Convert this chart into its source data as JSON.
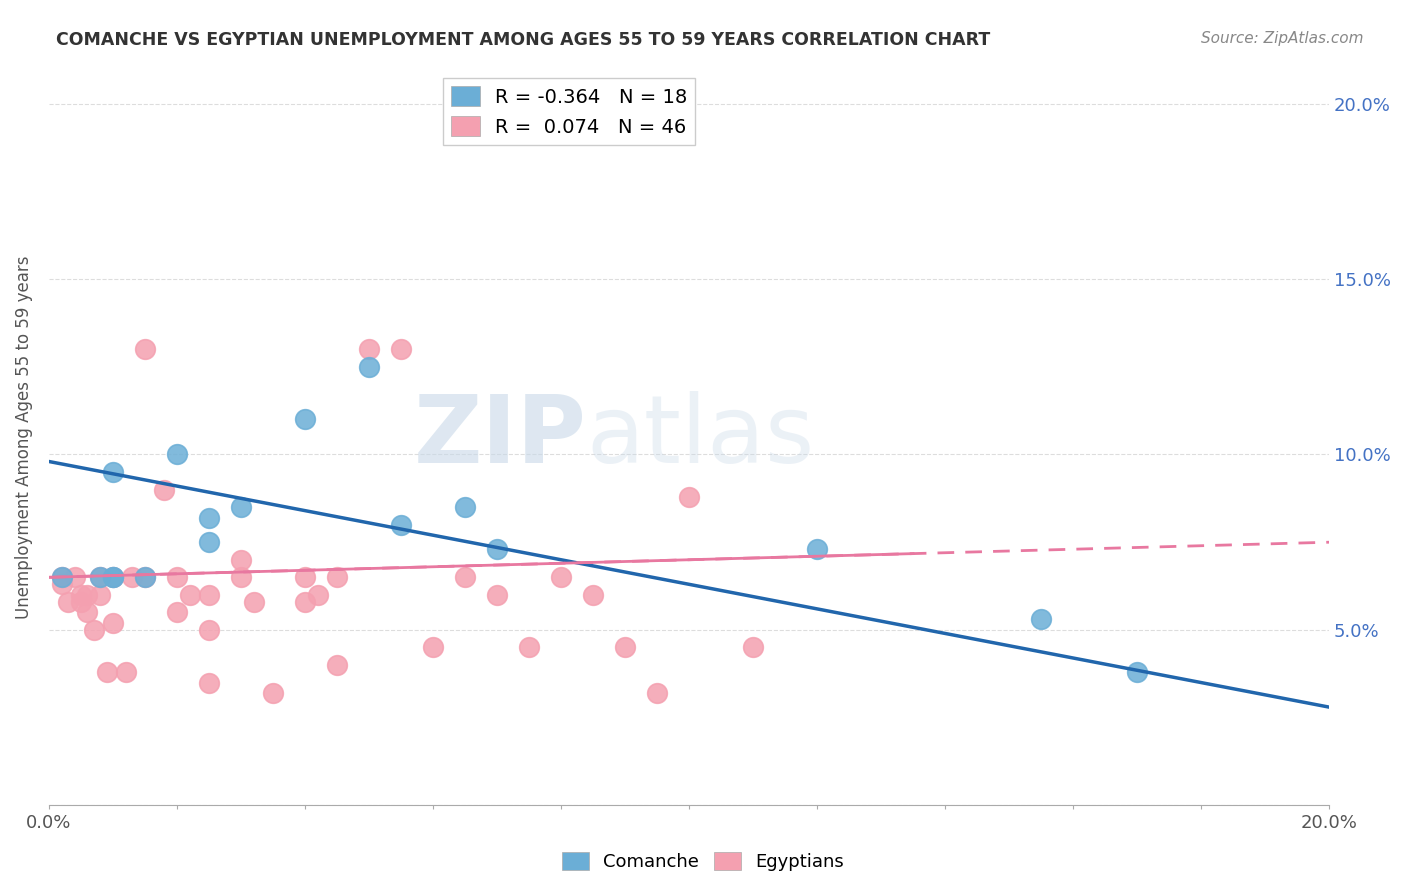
{
  "title": "COMANCHE VS EGYPTIAN UNEMPLOYMENT AMONG AGES 55 TO 59 YEARS CORRELATION CHART",
  "source": "Source: ZipAtlas.com",
  "ylabel": "Unemployment Among Ages 55 to 59 years",
  "xlim": [
    0.0,
    0.2
  ],
  "ylim": [
    0.0,
    0.21
  ],
  "xticks": [
    0.0,
    0.02,
    0.04,
    0.06,
    0.08,
    0.1,
    0.12,
    0.14,
    0.16,
    0.18,
    0.2
  ],
  "xtick_labels_show": [
    "0.0%",
    "",
    "",
    "",
    "",
    "",
    "",
    "",
    "",
    "",
    "20.0%"
  ],
  "yticks": [
    0.0,
    0.05,
    0.1,
    0.15,
    0.2
  ],
  "ytick_labels_right": [
    "",
    "5.0%",
    "10.0%",
    "15.0%",
    "20.0%"
  ],
  "comanche_color": "#6baed6",
  "egyptian_color": "#f4a0b0",
  "comanche_line_color": "#2166ac",
  "egyptian_line_color": "#e878a0",
  "watermark_zip": "ZIP",
  "watermark_atlas": "atlas",
  "legend_R_comanche": "-0.364",
  "legend_N_comanche": "18",
  "legend_R_egyptian": "0.074",
  "legend_N_egyptian": "46",
  "comanche_x": [
    0.002,
    0.008,
    0.01,
    0.01,
    0.01,
    0.015,
    0.02,
    0.025,
    0.025,
    0.03,
    0.04,
    0.05,
    0.055,
    0.065,
    0.07,
    0.12,
    0.155,
    0.17
  ],
  "comanche_y": [
    0.065,
    0.065,
    0.095,
    0.065,
    0.065,
    0.065,
    0.1,
    0.082,
    0.075,
    0.085,
    0.11,
    0.125,
    0.08,
    0.085,
    0.073,
    0.073,
    0.053,
    0.038
  ],
  "egyptian_x": [
    0.002,
    0.002,
    0.003,
    0.004,
    0.005,
    0.005,
    0.006,
    0.006,
    0.007,
    0.008,
    0.008,
    0.009,
    0.01,
    0.01,
    0.012,
    0.013,
    0.015,
    0.015,
    0.018,
    0.02,
    0.02,
    0.022,
    0.025,
    0.025,
    0.025,
    0.03,
    0.03,
    0.032,
    0.035,
    0.04,
    0.04,
    0.042,
    0.045,
    0.045,
    0.05,
    0.055,
    0.06,
    0.065,
    0.07,
    0.075,
    0.08,
    0.085,
    0.09,
    0.095,
    0.1,
    0.11
  ],
  "egyptian_y": [
    0.065,
    0.063,
    0.058,
    0.065,
    0.06,
    0.058,
    0.06,
    0.055,
    0.05,
    0.06,
    0.065,
    0.038,
    0.065,
    0.052,
    0.038,
    0.065,
    0.13,
    0.065,
    0.09,
    0.065,
    0.055,
    0.06,
    0.035,
    0.06,
    0.05,
    0.065,
    0.07,
    0.058,
    0.032,
    0.065,
    0.058,
    0.06,
    0.04,
    0.065,
    0.13,
    0.13,
    0.045,
    0.065,
    0.06,
    0.045,
    0.065,
    0.06,
    0.045,
    0.032,
    0.088,
    0.045
  ],
  "comanche_trend_x": [
    0.0,
    0.2
  ],
  "comanche_trend_y": [
    0.098,
    0.028
  ],
  "egyptian_trend_x": [
    0.0,
    0.2
  ],
  "egyptian_trend_y": [
    0.065,
    0.075
  ]
}
